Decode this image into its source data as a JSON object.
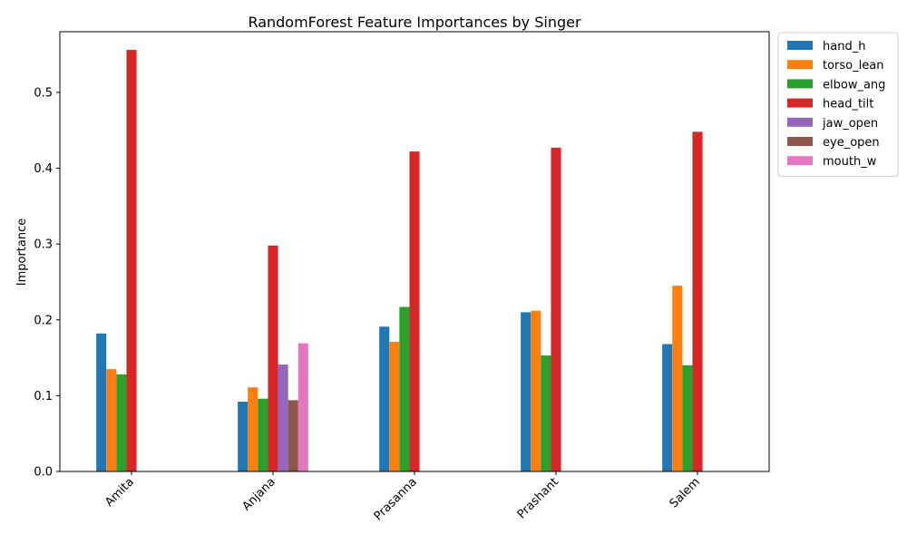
{
  "chart_data": {
    "type": "bar",
    "title": "RandomForest Feature Importances by Singer",
    "xlabel": "",
    "ylabel": "Importance",
    "categories": [
      "Amita",
      "Anjana",
      "Prasanna",
      "Prashant",
      "Salem"
    ],
    "ylim": [
      0,
      0.58
    ],
    "yticks": [
      "0.0",
      "0.1",
      "0.2",
      "0.3",
      "0.4",
      "0.5"
    ],
    "legend_position": "outside-top-right",
    "grid": false,
    "series": [
      {
        "name": "hand_h",
        "color": "#1f77b4",
        "values": [
          0.182,
          0.092,
          0.191,
          0.21,
          0.168
        ]
      },
      {
        "name": "torso_lean",
        "color": "#ff7f0e",
        "values": [
          0.135,
          0.111,
          0.171,
          0.212,
          0.245
        ]
      },
      {
        "name": "elbow_ang",
        "color": "#2ca02c",
        "values": [
          0.128,
          0.096,
          0.217,
          0.153,
          0.14
        ]
      },
      {
        "name": "head_tilt",
        "color": "#d62728",
        "values": [
          0.556,
          0.298,
          0.422,
          0.427,
          0.448
        ]
      },
      {
        "name": "jaw_open",
        "color": "#9467bd",
        "values": [
          0,
          0.141,
          0,
          0,
          0
        ]
      },
      {
        "name": "eye_open",
        "color": "#8c564b",
        "values": [
          0,
          0.094,
          0,
          0,
          0
        ]
      },
      {
        "name": "mouth_w",
        "color": "#e377c2",
        "values": [
          0,
          0.169,
          0,
          0,
          0
        ]
      }
    ]
  }
}
